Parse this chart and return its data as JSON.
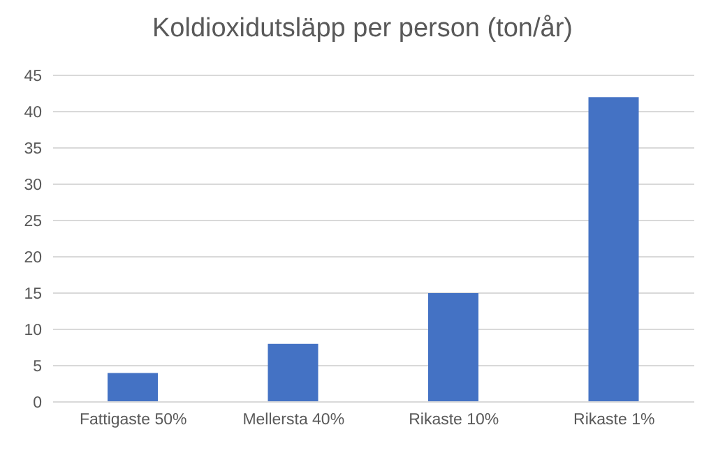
{
  "chart_data": {
    "type": "bar",
    "title": "Koldioxidutsläpp per person (ton/år)",
    "categories": [
      "Fattigaste 50%",
      "Mellersta 40%",
      "Rikaste 10%",
      "Rikaste 1%"
    ],
    "values": [
      4,
      8,
      15,
      42
    ],
    "color": "#4472c4",
    "ylim": [
      0,
      45
    ],
    "yticks": [
      0,
      5,
      10,
      15,
      20,
      25,
      30,
      35,
      40,
      45
    ],
    "grid": "y"
  }
}
